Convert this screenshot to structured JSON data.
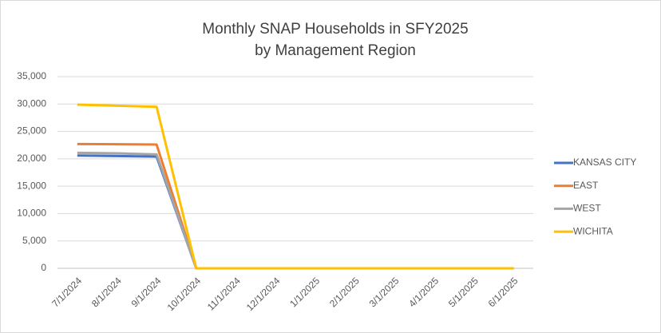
{
  "chart_data": {
    "type": "line",
    "title": [
      "Monthly SNAP Households in SFY2025",
      "by Management Region"
    ],
    "categories": [
      "7/1/2024",
      "8/1/2024",
      "9/1/2024",
      "10/1/2024",
      "11/1/2024",
      "12/1/2024",
      "1/1/2025",
      "2/1/2025",
      "3/1/2025",
      "4/1/2025",
      "5/1/2025",
      "6/1/2025"
    ],
    "series": [
      {
        "name": "KANSAS CITY",
        "color": "#4472c4",
        "values": [
          20600,
          20500,
          20400,
          0,
          0,
          0,
          0,
          0,
          0,
          0,
          0,
          0
        ]
      },
      {
        "name": "EAST",
        "color": "#ed7d31",
        "values": [
          22700,
          22650,
          22600,
          0,
          0,
          0,
          0,
          0,
          0,
          0,
          0,
          0
        ]
      },
      {
        "name": "WEST",
        "color": "#a5a5a5",
        "values": [
          21100,
          21000,
          20800,
          0,
          0,
          0,
          0,
          0,
          0,
          0,
          0,
          0
        ]
      },
      {
        "name": "WICHITA",
        "color": "#ffc000",
        "values": [
          29900,
          29700,
          29500,
          0,
          0,
          0,
          0,
          0,
          0,
          0,
          0,
          0
        ]
      }
    ],
    "ylim": [
      0,
      35000
    ],
    "yticks": [
      0,
      {
        "value": 5000,
        "label": "5,000"
      },
      {
        "value": 10000,
        "label": "10,000"
      },
      {
        "value": 15000,
        "label": "15,000"
      },
      {
        "value": 20000,
        "label": "20,000"
      },
      {
        "value": 25000,
        "label": "25,000"
      },
      {
        "value": 30000,
        "label": "30,000"
      },
      {
        "value": 35000,
        "label": "35,000"
      }
    ],
    "grid": true,
    "legend": "right"
  }
}
